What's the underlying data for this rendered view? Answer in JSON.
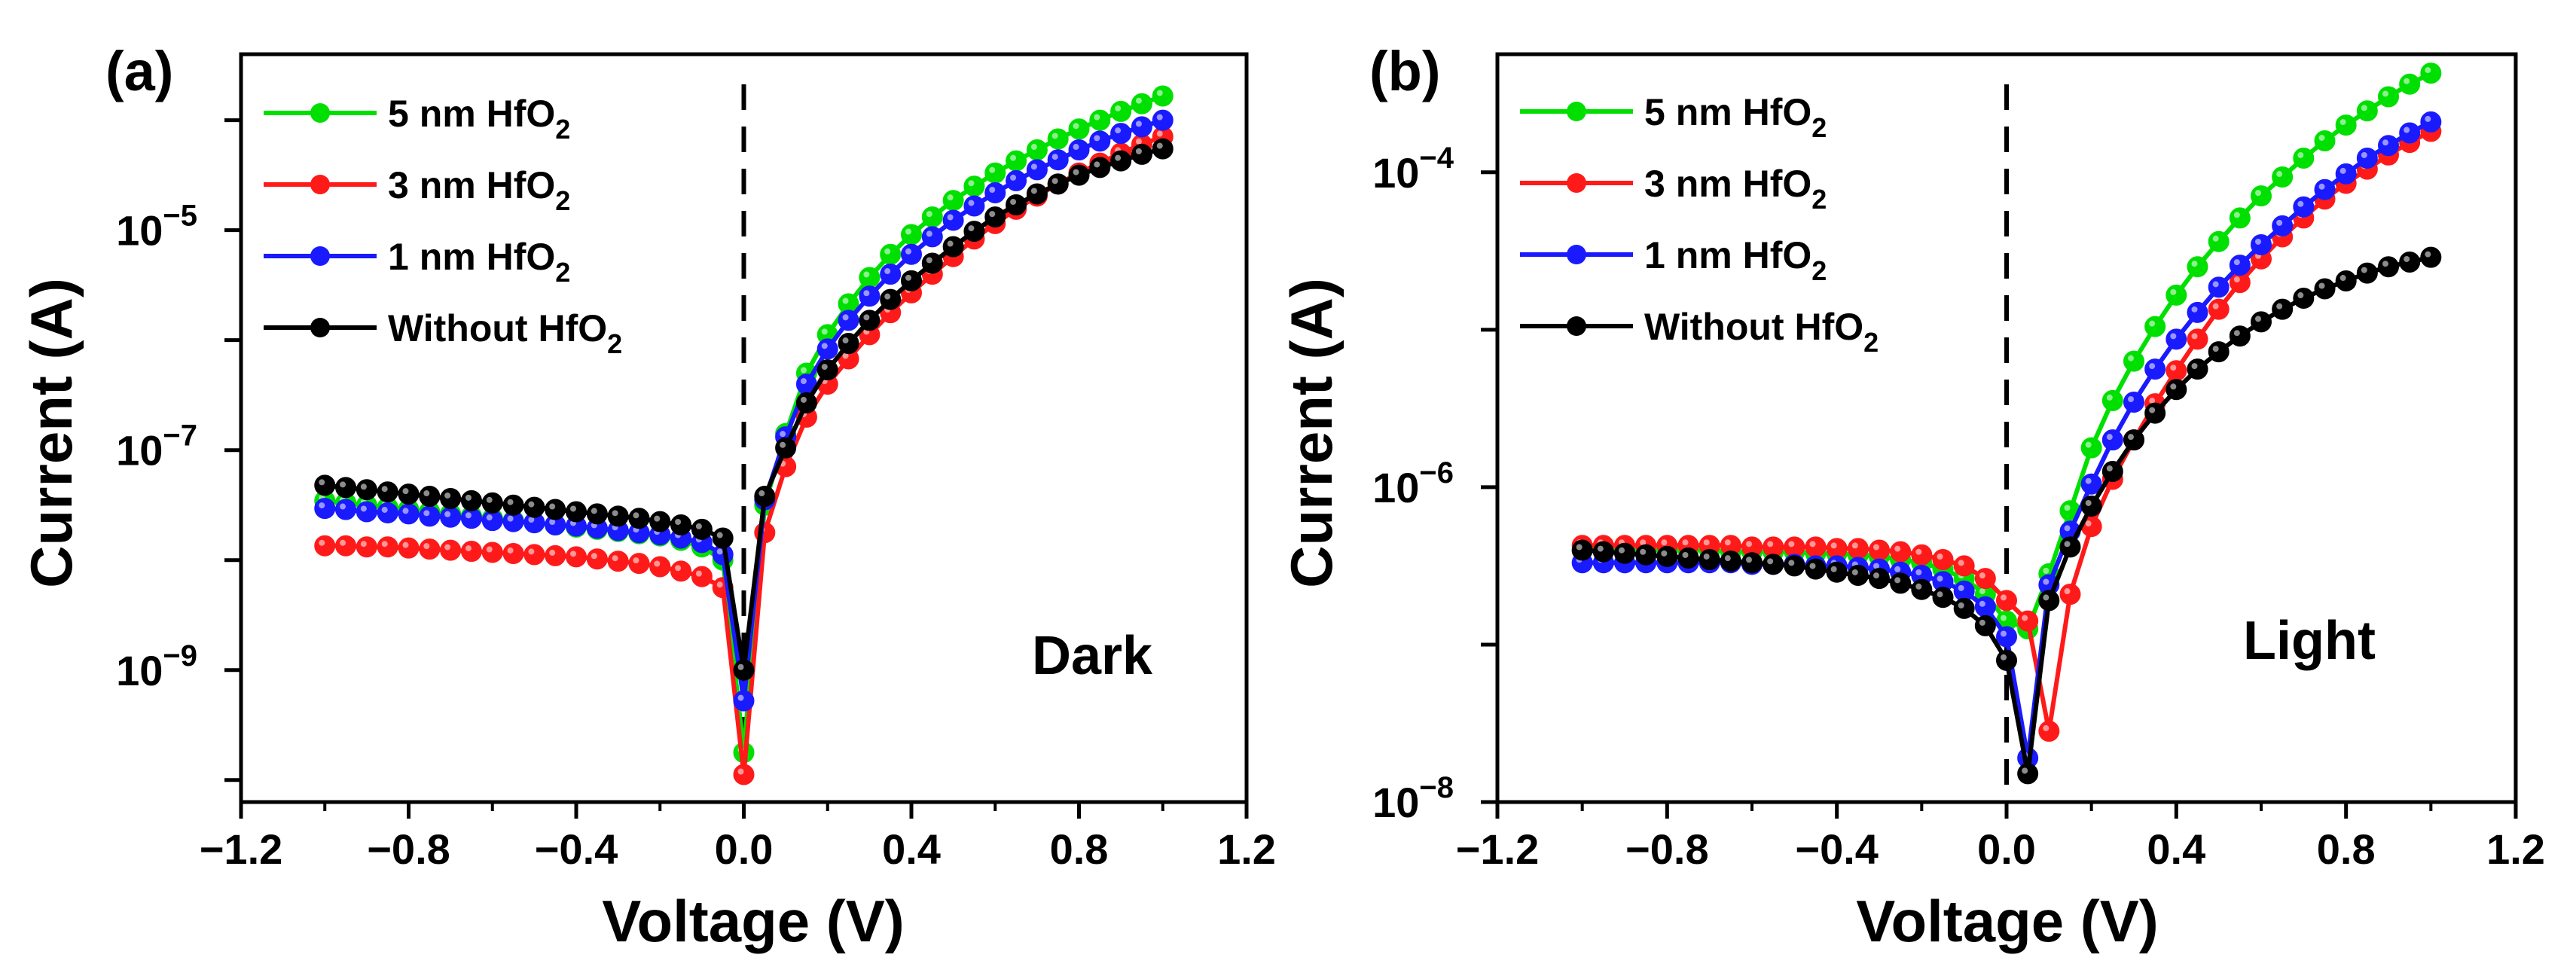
{
  "chart_data": [
    {
      "type": "line",
      "panel_label": "(a)",
      "annotation": "Dark",
      "xlabel": "Voltage (V)",
      "ylabel": "Current (A)",
      "yscale": "log",
      "xlim": [
        -1.2,
        1.2
      ],
      "ylim_exp": [
        -10.2,
        -3.4
      ],
      "xticks": [
        "−1.2",
        "−0.8",
        "−0.4",
        "0.0",
        "0.4",
        "0.8",
        "1.2"
      ],
      "yticks_exp": [
        -9,
        -7,
        -5
      ],
      "ytick_base": "10",
      "ytick_sups": [
        "−9",
        "−7",
        "−5"
      ],
      "dashed_line_x": 0.0,
      "legend_position": "top-left",
      "x": [
        -1.0,
        -0.95,
        -0.9,
        -0.85,
        -0.8,
        -0.75,
        -0.7,
        -0.65,
        -0.6,
        -0.55,
        -0.5,
        -0.45,
        -0.4,
        -0.35,
        -0.3,
        -0.25,
        -0.2,
        -0.15,
        -0.1,
        -0.05,
        0.0,
        0.05,
        0.1,
        0.15,
        0.2,
        0.25,
        0.3,
        0.35,
        0.4,
        0.45,
        0.5,
        0.55,
        0.6,
        0.65,
        0.7,
        0.75,
        0.8,
        0.85,
        0.9,
        0.95,
        1.0
      ],
      "series": [
        {
          "name_main": "5 nm HfO",
          "name_sub": "2",
          "color": "#00e000",
          "log_values": [
            -7.46,
            -7.48,
            -7.5,
            -7.52,
            -7.54,
            -7.56,
            -7.58,
            -7.6,
            -7.62,
            -7.64,
            -7.66,
            -7.68,
            -7.7,
            -7.72,
            -7.74,
            -7.76,
            -7.78,
            -7.82,
            -7.88,
            -8.0,
            -9.75,
            -7.5,
            -6.85,
            -6.3,
            -5.95,
            -5.67,
            -5.43,
            -5.22,
            -5.04,
            -4.88,
            -4.73,
            -4.6,
            -4.48,
            -4.37,
            -4.27,
            -4.17,
            -4.08,
            -4.0,
            -3.92,
            -3.85,
            -3.78
          ]
        },
        {
          "name_main": "3 nm HfO",
          "name_sub": "2",
          "color": "#ff1a1a",
          "log_values": [
            -7.87,
            -7.87,
            -7.88,
            -7.88,
            -7.89,
            -7.9,
            -7.91,
            -7.92,
            -7.93,
            -7.94,
            -7.95,
            -7.96,
            -7.97,
            -7.99,
            -8.01,
            -8.03,
            -8.06,
            -8.1,
            -8.15,
            -8.25,
            -9.95,
            -7.75,
            -7.15,
            -6.7,
            -6.4,
            -6.17,
            -5.95,
            -5.75,
            -5.57,
            -5.4,
            -5.24,
            -5.08,
            -4.94,
            -4.81,
            -4.69,
            -4.58,
            -4.48,
            -4.39,
            -4.3,
            -4.22,
            -4.15
          ]
        },
        {
          "name_main": "1 nm HfO",
          "name_sub": "2",
          "color": "#1a1aff",
          "log_values": [
            -7.53,
            -7.54,
            -7.56,
            -7.57,
            -7.58,
            -7.6,
            -7.61,
            -7.62,
            -7.64,
            -7.65,
            -7.66,
            -7.68,
            -7.69,
            -7.71,
            -7.73,
            -7.75,
            -7.77,
            -7.8,
            -7.84,
            -7.95,
            -9.28,
            -7.45,
            -6.88,
            -6.4,
            -6.08,
            -5.82,
            -5.6,
            -5.4,
            -5.22,
            -5.06,
            -4.91,
            -4.78,
            -4.66,
            -4.55,
            -4.45,
            -4.36,
            -4.27,
            -4.19,
            -4.12,
            -4.06,
            -4.0
          ]
        },
        {
          "name_main": "Without HfO",
          "name_sub": "2",
          "color": "#000000",
          "log_values": [
            -7.32,
            -7.34,
            -7.36,
            -7.38,
            -7.4,
            -7.42,
            -7.44,
            -7.46,
            -7.48,
            -7.5,
            -7.52,
            -7.54,
            -7.56,
            -7.58,
            -7.6,
            -7.62,
            -7.65,
            -7.68,
            -7.72,
            -7.8,
            -9.0,
            -7.42,
            -6.98,
            -6.57,
            -6.27,
            -6.03,
            -5.82,
            -5.63,
            -5.46,
            -5.3,
            -5.15,
            -5.01,
            -4.88,
            -4.77,
            -4.67,
            -4.58,
            -4.5,
            -4.43,
            -4.37,
            -4.31,
            -4.26
          ]
        }
      ]
    },
    {
      "type": "line",
      "panel_label": "(b)",
      "annotation": "Light",
      "xlabel": "Voltage (V)",
      "ylabel": "Current (A)",
      "yscale": "log",
      "xlim": [
        -1.2,
        1.2
      ],
      "ylim_exp": [
        -8.0,
        -3.25
      ],
      "xticks": [
        "−1.2",
        "−0.8",
        "−0.4",
        "0.0",
        "0.4",
        "0.8",
        "1.2"
      ],
      "yticks_exp": [
        -8,
        -6,
        -4
      ],
      "ytick_base": "10",
      "ytick_sups": [
        "−8",
        "−6",
        "−4"
      ],
      "dashed_line_x": 0.0,
      "legend_position": "top-left",
      "x": [
        -1.0,
        -0.95,
        -0.9,
        -0.85,
        -0.8,
        -0.75,
        -0.7,
        -0.65,
        -0.6,
        -0.55,
        -0.5,
        -0.45,
        -0.4,
        -0.35,
        -0.3,
        -0.25,
        -0.2,
        -0.15,
        -0.1,
        -0.05,
        0.0,
        0.05,
        0.1,
        0.15,
        0.2,
        0.25,
        0.3,
        0.35,
        0.4,
        0.45,
        0.5,
        0.55,
        0.6,
        0.65,
        0.7,
        0.75,
        0.8,
        0.85,
        0.9,
        0.95,
        1.0
      ],
      "series": [
        {
          "name_main": "5 nm HfO",
          "name_sub": "2",
          "color": "#00e000",
          "log_values": [
            -6.4,
            -6.4,
            -6.4,
            -6.4,
            -6.4,
            -6.4,
            -6.4,
            -6.41,
            -6.41,
            -6.41,
            -6.41,
            -6.42,
            -6.42,
            -6.43,
            -6.44,
            -6.46,
            -6.48,
            -6.52,
            -6.58,
            -6.68,
            -6.85,
            -6.9,
            -6.55,
            -6.15,
            -5.75,
            -5.45,
            -5.2,
            -4.98,
            -4.78,
            -4.6,
            -4.44,
            -4.29,
            -4.15,
            -4.03,
            -3.91,
            -3.8,
            -3.7,
            -3.61,
            -3.52,
            -3.44,
            -3.37
          ]
        },
        {
          "name_main": "3 nm HfO",
          "name_sub": "2",
          "color": "#ff1a1a",
          "log_values": [
            -6.37,
            -6.37,
            -6.37,
            -6.37,
            -6.37,
            -6.37,
            -6.37,
            -6.37,
            -6.38,
            -6.38,
            -6.38,
            -6.38,
            -6.39,
            -6.39,
            -6.4,
            -6.41,
            -6.43,
            -6.46,
            -6.5,
            -6.58,
            -6.72,
            -6.85,
            -7.55,
            -6.68,
            -6.25,
            -5.95,
            -5.7,
            -5.47,
            -5.26,
            -5.06,
            -4.87,
            -4.7,
            -4.55,
            -4.41,
            -4.29,
            -4.17,
            -4.07,
            -3.98,
            -3.89,
            -3.81,
            -3.74
          ]
        },
        {
          "name_main": "1 nm HfO",
          "name_sub": "2",
          "color": "#1a1aff",
          "log_values": [
            -6.48,
            -6.48,
            -6.48,
            -6.48,
            -6.48,
            -6.48,
            -6.48,
            -6.48,
            -6.49,
            -6.49,
            -6.49,
            -6.5,
            -6.5,
            -6.51,
            -6.52,
            -6.54,
            -6.56,
            -6.6,
            -6.66,
            -6.76,
            -6.95,
            -7.72,
            -6.62,
            -6.28,
            -5.98,
            -5.7,
            -5.46,
            -5.25,
            -5.06,
            -4.89,
            -4.73,
            -4.59,
            -4.46,
            -4.34,
            -4.22,
            -4.11,
            -4.01,
            -3.91,
            -3.83,
            -3.75,
            -3.68
          ]
        },
        {
          "name_main": "Without HfO",
          "name_sub": "2",
          "color": "#000000",
          "log_values": [
            -6.4,
            -6.41,
            -6.42,
            -6.43,
            -6.44,
            -6.45,
            -6.46,
            -6.47,
            -6.48,
            -6.49,
            -6.5,
            -6.52,
            -6.54,
            -6.56,
            -6.58,
            -6.61,
            -6.65,
            -6.7,
            -6.77,
            -6.88,
            -7.1,
            -7.82,
            -6.72,
            -6.38,
            -6.12,
            -5.9,
            -5.7,
            -5.53,
            -5.38,
            -5.25,
            -5.14,
            -5.04,
            -4.95,
            -4.87,
            -4.8,
            -4.74,
            -4.69,
            -4.64,
            -4.6,
            -4.57,
            -4.54
          ]
        }
      ]
    }
  ]
}
